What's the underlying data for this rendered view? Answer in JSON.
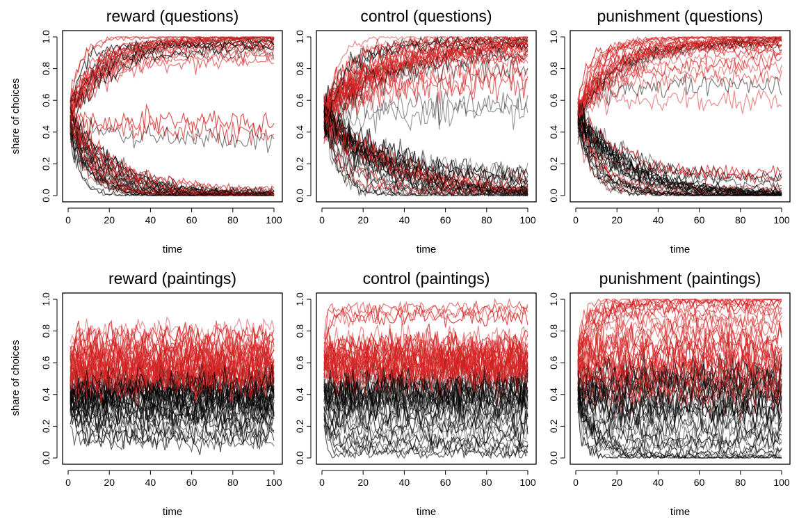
{
  "figure": {
    "ylabel": "share of choices",
    "xlabel": "time"
  },
  "colors": {
    "red_series": "#d42020",
    "black_series": "#000000",
    "axis": "#000000"
  },
  "chart_data": [
    {
      "type": "line",
      "title": "reward (questions)",
      "xlabel": "time",
      "ylabel": "share of choices",
      "xlim": [
        0,
        100
      ],
      "ylim": [
        0,
        1
      ],
      "xticks": [
        0,
        20,
        40,
        60,
        80,
        100
      ],
      "yticks": [
        "0.0",
        "0.2",
        "0.4",
        "0.6",
        "0.8",
        "1.0"
      ],
      "series_groups": [
        {
          "name": "red trajectories",
          "color": "red",
          "count": 30,
          "start": 0.5,
          "end_levels": [
            1.0,
            1.0,
            1.0,
            1.0,
            0.99,
            0.98,
            0.97,
            0.95,
            0.93,
            0.9,
            0.88,
            0.85,
            0.45,
            0.4,
            0.0,
            0.0,
            0.01,
            0.02,
            0.0,
            0.01,
            0.0,
            0.03,
            0.0,
            0.02,
            0.0,
            1.0,
            1.0,
            0.99,
            0.96,
            0.94
          ],
          "noise": 0.03,
          "speed": [
            5,
            25
          ]
        },
        {
          "name": "black trajectories",
          "color": "black",
          "count": 30,
          "start": 0.5,
          "end_levels": [
            0.0,
            0.0,
            0.0,
            0.0,
            0.0,
            0.01,
            0.02,
            0.0,
            0.01,
            0.0,
            0.0,
            0.0,
            0.03,
            0.02,
            0.0,
            0.0,
            0.01,
            1.0,
            0.99,
            0.98,
            0.97,
            0.95,
            0.93,
            0.9,
            0.35,
            0.0,
            0.0,
            0.01,
            0.0,
            0.0
          ],
          "noise": 0.03,
          "speed": [
            5,
            25
          ]
        }
      ]
    },
    {
      "type": "line",
      "title": "control (questions)",
      "xlabel": "time",
      "ylabel": "share of choices",
      "xlim": [
        0,
        100
      ],
      "ylim": [
        0,
        1
      ],
      "xticks": [
        0,
        20,
        40,
        60,
        80,
        100
      ],
      "yticks": [
        "0.0",
        "0.2",
        "0.4",
        "0.6",
        "0.8",
        "1.0"
      ],
      "series_groups": [
        {
          "name": "red trajectories",
          "color": "red",
          "count": 30,
          "start": 0.5,
          "end_levels": [
            1.0,
            1.0,
            1.0,
            1.0,
            0.99,
            0.98,
            0.97,
            0.96,
            0.95,
            0.93,
            0.9,
            0.88,
            0.85,
            0.8,
            0.75,
            0.7,
            0.05,
            0.03,
            0.0,
            0.0,
            0.01,
            0.02,
            1.0,
            0.99,
            0.98,
            0.96,
            0.94,
            0.92,
            0.1,
            0.0
          ],
          "noise": 0.04,
          "speed": [
            5,
            40
          ]
        },
        {
          "name": "black trajectories",
          "color": "black",
          "count": 30,
          "start": 0.5,
          "end_levels": [
            0.0,
            0.0,
            0.0,
            0.01,
            0.02,
            0.05,
            0.08,
            0.1,
            0.12,
            0.15,
            0.0,
            0.0,
            0.03,
            0.0,
            0.01,
            0.95,
            0.97,
            0.99,
            1.0,
            0.9,
            0.8,
            0.6,
            0.55,
            0.0,
            0.0,
            0.02,
            0.04,
            0.0,
            0.06,
            0.0
          ],
          "noise": 0.04,
          "speed": [
            5,
            40
          ]
        }
      ]
    },
    {
      "type": "line",
      "title": "punishment (questions)",
      "xlabel": "time",
      "ylabel": "share of choices",
      "xlim": [
        0,
        100
      ],
      "ylim": [
        0,
        1
      ],
      "xticks": [
        0,
        20,
        40,
        60,
        80,
        100
      ],
      "yticks": [
        "0.0",
        "0.2",
        "0.4",
        "0.6",
        "0.8",
        "1.0"
      ],
      "series_groups": [
        {
          "name": "red trajectories",
          "color": "red",
          "count": 30,
          "start": 0.5,
          "end_levels": [
            1.0,
            1.0,
            1.0,
            1.0,
            1.0,
            0.99,
            0.99,
            0.98,
            0.97,
            0.96,
            0.95,
            0.94,
            0.92,
            0.9,
            0.88,
            0.85,
            0.8,
            0.75,
            0.05,
            0.1,
            0.15,
            0.0,
            0.02,
            1.0,
            1.0,
            0.99,
            0.98,
            0.97,
            0.6,
            0.0
          ],
          "noise": 0.03,
          "speed": [
            5,
            30
          ]
        },
        {
          "name": "black trajectories",
          "color": "black",
          "count": 30,
          "start": 0.5,
          "end_levels": [
            0.0,
            0.0,
            0.0,
            0.0,
            0.0,
            0.0,
            0.01,
            0.01,
            0.02,
            0.03,
            0.05,
            0.08,
            0.1,
            0.0,
            0.0,
            0.0,
            0.01,
            0.0,
            0.7,
            0.95,
            0.97,
            0.99,
            0.0,
            0.0,
            0.02,
            0.0,
            0.0,
            0.04,
            0.0,
            0.0
          ],
          "noise": 0.03,
          "speed": [
            5,
            30
          ]
        }
      ]
    },
    {
      "type": "line",
      "title": "reward (paintings)",
      "xlabel": "time",
      "ylabel": "share of choices",
      "xlim": [
        0,
        100
      ],
      "ylim": [
        0,
        1
      ],
      "xticks": [
        0,
        20,
        40,
        60,
        80,
        100
      ],
      "yticks": [
        "0.0",
        "0.2",
        "0.4",
        "0.6",
        "0.8",
        "1.0"
      ],
      "series_groups": [
        {
          "name": "red trajectories",
          "color": "red",
          "count": 30,
          "start": 0.55,
          "end_levels": [
            0.8,
            0.78,
            0.75,
            0.72,
            0.7,
            0.68,
            0.66,
            0.65,
            0.64,
            0.62,
            0.62,
            0.6,
            0.6,
            0.58,
            0.58,
            0.57,
            0.56,
            0.55,
            0.55,
            0.54,
            0.53,
            0.52,
            0.52,
            0.51,
            0.5,
            0.5,
            0.49,
            0.48,
            0.7,
            0.65
          ],
          "noise": 0.045,
          "speed": [
            1,
            3
          ]
        },
        {
          "name": "black trajectories",
          "color": "black",
          "count": 30,
          "start": 0.4,
          "end_levels": [
            0.5,
            0.48,
            0.47,
            0.45,
            0.44,
            0.43,
            0.42,
            0.41,
            0.4,
            0.4,
            0.39,
            0.38,
            0.37,
            0.36,
            0.35,
            0.34,
            0.33,
            0.32,
            0.3,
            0.28,
            0.26,
            0.25,
            0.23,
            0.2,
            0.18,
            0.15,
            0.12,
            0.1,
            0.45,
            0.42
          ],
          "noise": 0.045,
          "speed": [
            1,
            3
          ]
        }
      ]
    },
    {
      "type": "line",
      "title": "control (paintings)",
      "xlabel": "time",
      "ylabel": "share of choices",
      "xlim": [
        0,
        100
      ],
      "ylim": [
        0,
        1
      ],
      "xticks": [
        0,
        20,
        40,
        60,
        80,
        100
      ],
      "yticks": [
        "0.0",
        "0.2",
        "0.4",
        "0.6",
        "0.8",
        "1.0"
      ],
      "series_groups": [
        {
          "name": "red trajectories",
          "color": "red",
          "count": 30,
          "start": 0.6,
          "end_levels": [
            0.95,
            0.93,
            0.9,
            0.88,
            0.75,
            0.72,
            0.7,
            0.68,
            0.66,
            0.65,
            0.64,
            0.63,
            0.62,
            0.61,
            0.6,
            0.6,
            0.59,
            0.58,
            0.57,
            0.56,
            0.55,
            0.55,
            0.54,
            0.53,
            0.52,
            0.51,
            0.5,
            0.7,
            0.66,
            0.62
          ],
          "noise": 0.045,
          "speed": [
            1,
            3
          ]
        },
        {
          "name": "black trajectories",
          "color": "black",
          "count": 30,
          "start": 0.4,
          "end_levels": [
            0.5,
            0.48,
            0.46,
            0.45,
            0.44,
            0.42,
            0.4,
            0.4,
            0.38,
            0.37,
            0.36,
            0.35,
            0.34,
            0.32,
            0.3,
            0.28,
            0.25,
            0.22,
            0.2,
            0.18,
            0.15,
            0.12,
            0.1,
            0.08,
            0.06,
            0.04,
            0.03,
            0.45,
            0.42,
            0.38
          ],
          "noise": 0.045,
          "speed": [
            1,
            3
          ]
        }
      ]
    },
    {
      "type": "line",
      "title": "punishment (paintings)",
      "xlabel": "time",
      "ylabel": "share of choices",
      "xlim": [
        0,
        100
      ],
      "ylim": [
        0,
        1
      ],
      "xticks": [
        0,
        20,
        40,
        60,
        80,
        100
      ],
      "yticks": [
        "0.0",
        "0.2",
        "0.4",
        "0.6",
        "0.8",
        "1.0"
      ],
      "series_groups": [
        {
          "name": "red trajectories",
          "color": "red",
          "count": 30,
          "start": 0.55,
          "end_levels": [
            1.0,
            1.0,
            0.99,
            0.98,
            0.97,
            0.95,
            0.93,
            0.9,
            0.88,
            0.85,
            0.82,
            0.8,
            0.78,
            0.75,
            0.72,
            0.7,
            0.68,
            0.65,
            0.62,
            0.6,
            0.58,
            0.56,
            0.55,
            0.52,
            0.5,
            0.48,
            0.45,
            0.42,
            0.4,
            0.99
          ],
          "noise": 0.045,
          "speed": [
            2,
            10
          ]
        },
        {
          "name": "black trajectories",
          "color": "black",
          "count": 30,
          "start": 0.45,
          "end_levels": [
            0.55,
            0.52,
            0.5,
            0.48,
            0.45,
            0.42,
            0.4,
            0.38,
            0.36,
            0.34,
            0.32,
            0.3,
            0.28,
            0.25,
            0.22,
            0.2,
            0.18,
            0.15,
            0.12,
            0.1,
            0.08,
            0.06,
            0.04,
            0.02,
            0.01,
            0.0,
            0.0,
            0.0,
            0.5,
            0.45
          ],
          "noise": 0.045,
          "speed": [
            2,
            10
          ]
        }
      ]
    }
  ]
}
